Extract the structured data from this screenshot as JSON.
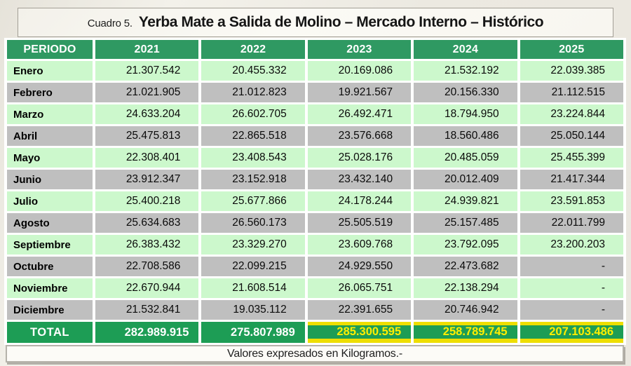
{
  "page": {
    "title_prefix": "Cuadro 5.",
    "title": "Yerba Mate a Salida de Molino – Mercado Interno – Histórico",
    "footnote": "Valores expresados en Kilogramos.-"
  },
  "colors": {
    "header_green": "#2F9962",
    "total_green": "#1D9D55",
    "row_light_green": "#CCF8CC",
    "row_gray": "#BFBFBF",
    "highlight_marker": "#EEDE00",
    "highlight_text": "#FFEE00"
  },
  "table": {
    "columns": [
      "PERIODO",
      "2021",
      "2022",
      "2023",
      "2024",
      "2025"
    ],
    "rows": [
      {
        "month": "Enero",
        "values": [
          "21.307.542",
          "20.455.332",
          "20.169.086",
          "21.532.192",
          "22.039.385"
        ]
      },
      {
        "month": "Febrero",
        "values": [
          "21.021.905",
          "21.012.823",
          "19.921.567",
          "20.156.330",
          "21.112.515"
        ]
      },
      {
        "month": "Marzo",
        "values": [
          "24.633.204",
          "26.602.705",
          "26.492.471",
          "18.794.950",
          "23.224.844"
        ]
      },
      {
        "month": "Abril",
        "values": [
          "25.475.813",
          "22.865.518",
          "23.576.668",
          "18.560.486",
          "25.050.144"
        ]
      },
      {
        "month": "Mayo",
        "values": [
          "22.308.401",
          "23.408.543",
          "25.028.176",
          "20.485.059",
          "25.455.399"
        ]
      },
      {
        "month": "Junio",
        "values": [
          "23.912.347",
          "23.152.918",
          "23.432.140",
          "20.012.409",
          "21.417.344"
        ]
      },
      {
        "month": "Julio",
        "values": [
          "25.400.218",
          "25.677.866",
          "24.178.244",
          "24.939.821",
          "23.591.853"
        ]
      },
      {
        "month": "Agosto",
        "values": [
          "25.634.683",
          "26.560.173",
          "25.505.519",
          "25.157.485",
          "22.011.799"
        ]
      },
      {
        "month": "Septiembre",
        "values": [
          "26.383.432",
          "23.329.270",
          "23.609.768",
          "23.792.095",
          "23.200.203"
        ]
      },
      {
        "month": "Octubre",
        "values": [
          "22.708.586",
          "22.099.215",
          "24.929.550",
          "22.473.682",
          "-"
        ]
      },
      {
        "month": "Noviembre",
        "values": [
          "22.670.944",
          "21.608.514",
          "26.065.751",
          "22.138.294",
          "-"
        ]
      },
      {
        "month": "Diciembre",
        "values": [
          "21.532.841",
          "19.035.112",
          "22.391.655",
          "20.746.942",
          "-"
        ]
      }
    ],
    "total": {
      "label": "TOTAL",
      "values": [
        "282.989.915",
        "275.807.989",
        "285.300.595",
        "258.789.745",
        "207.103.486"
      ],
      "highlighted": [
        false,
        false,
        true,
        true,
        true
      ]
    }
  },
  "chart_data": {
    "type": "table",
    "title": "Cuadro 5. Yerba Mate a Salida de Molino – Mercado Interno – Histórico",
    "unit": "Kilogramos",
    "categories": [
      "Enero",
      "Febrero",
      "Marzo",
      "Abril",
      "Mayo",
      "Junio",
      "Julio",
      "Agosto",
      "Septiembre",
      "Octubre",
      "Noviembre",
      "Diciembre"
    ],
    "series": [
      {
        "name": "2021",
        "values": [
          21307542,
          21021905,
          24633204,
          25475813,
          22308401,
          23912347,
          25400218,
          25634683,
          26383432,
          22708586,
          22670944,
          21532841
        ],
        "total": 282989915
      },
      {
        "name": "2022",
        "values": [
          20455332,
          21012823,
          26602705,
          22865518,
          23408543,
          23152918,
          25677866,
          26560173,
          23329270,
          22099215,
          21608514,
          19035112
        ],
        "total": 275807989
      },
      {
        "name": "2023",
        "values": [
          20169086,
          19921567,
          26492471,
          23576668,
          25028176,
          23432140,
          24178244,
          25505519,
          23609768,
          24929550,
          26065751,
          22391655
        ],
        "total": 285300595
      },
      {
        "name": "2024",
        "values": [
          21532192,
          20156330,
          18794950,
          18560486,
          20485059,
          20012409,
          24939821,
          25157485,
          23792095,
          22473682,
          22138294,
          20746942
        ],
        "total": 258789745
      },
      {
        "name": "2025",
        "values": [
          22039385,
          21112515,
          23224844,
          25050144,
          25455399,
          21417344,
          23591853,
          22011799,
          23200203,
          null,
          null,
          null
        ],
        "total": 207103486
      }
    ],
    "highlighted_totals": [
      "2023",
      "2024",
      "2025"
    ],
    "footnote": "Valores expresados en Kilogramos.-"
  }
}
